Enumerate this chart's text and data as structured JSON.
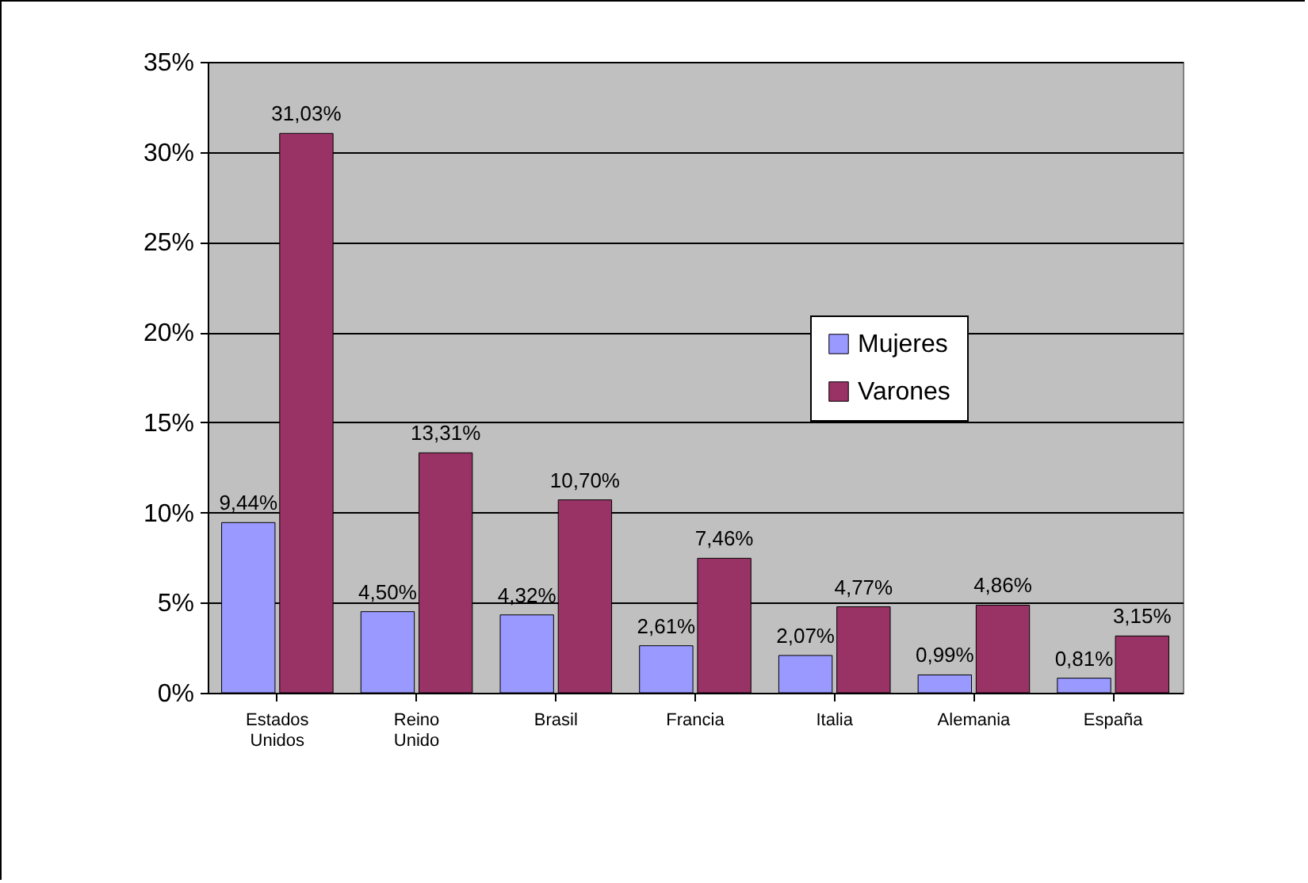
{
  "chart_data": {
    "type": "bar",
    "categories": [
      "Estados Unidos",
      "Reino Unido",
      "Brasil",
      "Francia",
      "Italia",
      "Alemania",
      "España"
    ],
    "series": [
      {
        "name": "Mujeres",
        "color": "#9999ff",
        "values": [
          9.44,
          4.5,
          4.32,
          2.61,
          2.07,
          0.99,
          0.81
        ],
        "value_labels": [
          "9,44%",
          "4,50%",
          "4,32%",
          "2,61%",
          "2,07%",
          "0,99%",
          "0,81%"
        ]
      },
      {
        "name": "Varones",
        "color": "#993366",
        "values": [
          31.03,
          13.31,
          10.7,
          7.46,
          4.77,
          4.86,
          3.15
        ],
        "value_labels": [
          "31,03%",
          "13,31%",
          "10,70%",
          "7,46%",
          "4,77%",
          "4,86%",
          "3,15%"
        ]
      }
    ],
    "ylim": [
      0,
      35
    ],
    "yticks": [
      {
        "value": 0,
        "label": "0%"
      },
      {
        "value": 5,
        "label": "5%"
      },
      {
        "value": 10,
        "label": "10%"
      },
      {
        "value": 15,
        "label": "15%"
      },
      {
        "value": 20,
        "label": "20%"
      },
      {
        "value": 25,
        "label": "25%"
      },
      {
        "value": 30,
        "label": "30%"
      },
      {
        "value": 35,
        "label": "35%"
      }
    ],
    "grid": "y",
    "legend": "right"
  }
}
